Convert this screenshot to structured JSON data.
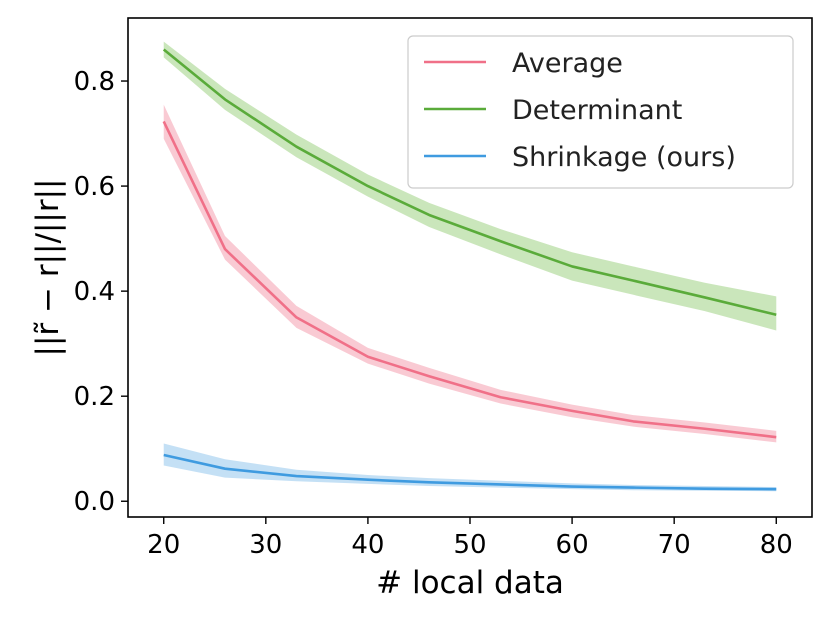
{
  "chart_data": {
    "type": "line",
    "title": "",
    "xlabel": "# local data",
    "ylabel": "||r̃ − r||/||r||",
    "xlim": [
      16.5,
      83.5
    ],
    "ylim": [
      -0.03,
      0.92
    ],
    "xticks": [
      20,
      30,
      40,
      50,
      60,
      70,
      80
    ],
    "yticks": [
      0.0,
      0.2,
      0.4,
      0.6,
      0.8
    ],
    "ytick_labels": [
      "0.0",
      "0.2",
      "0.4",
      "0.6",
      "0.8"
    ],
    "grid": false,
    "legend_position": "top-right",
    "x": [
      20,
      26,
      33,
      40,
      46,
      53,
      60,
      66,
      73,
      80
    ],
    "series": [
      {
        "name": "Average",
        "color": "#f07088",
        "band_color": "#f7b8c4",
        "values": [
          0.723,
          0.48,
          0.35,
          0.275,
          0.238,
          0.198,
          0.172,
          0.152,
          0.138,
          0.122
        ],
        "lower": [
          0.69,
          0.46,
          0.33,
          0.262,
          0.224,
          0.186,
          0.16,
          0.142,
          0.128,
          0.112
        ],
        "upper": [
          0.755,
          0.505,
          0.372,
          0.292,
          0.254,
          0.212,
          0.184,
          0.164,
          0.15,
          0.134
        ]
      },
      {
        "name": "Determinant",
        "color": "#5aab3a",
        "band_color": "#b8dda4",
        "values": [
          0.86,
          0.765,
          0.675,
          0.6,
          0.545,
          0.495,
          0.447,
          0.42,
          0.388,
          0.355
        ],
        "lower": [
          0.845,
          0.745,
          0.655,
          0.58,
          0.522,
          0.47,
          0.42,
          0.393,
          0.362,
          0.325
        ],
        "upper": [
          0.875,
          0.785,
          0.698,
          0.622,
          0.568,
          0.518,
          0.474,
          0.447,
          0.416,
          0.39
        ]
      },
      {
        "name": "Shrinkage (ours)",
        "color": "#3f9be0",
        "band_color": "#b0d6f2",
        "values": [
          0.088,
          0.062,
          0.048,
          0.041,
          0.036,
          0.032,
          0.028,
          0.026,
          0.024,
          0.023
        ],
        "lower": [
          0.068,
          0.045,
          0.038,
          0.033,
          0.029,
          0.026,
          0.023,
          0.021,
          0.02,
          0.019
        ],
        "upper": [
          0.11,
          0.08,
          0.06,
          0.05,
          0.044,
          0.039,
          0.034,
          0.031,
          0.029,
          0.027
        ]
      }
    ]
  }
}
